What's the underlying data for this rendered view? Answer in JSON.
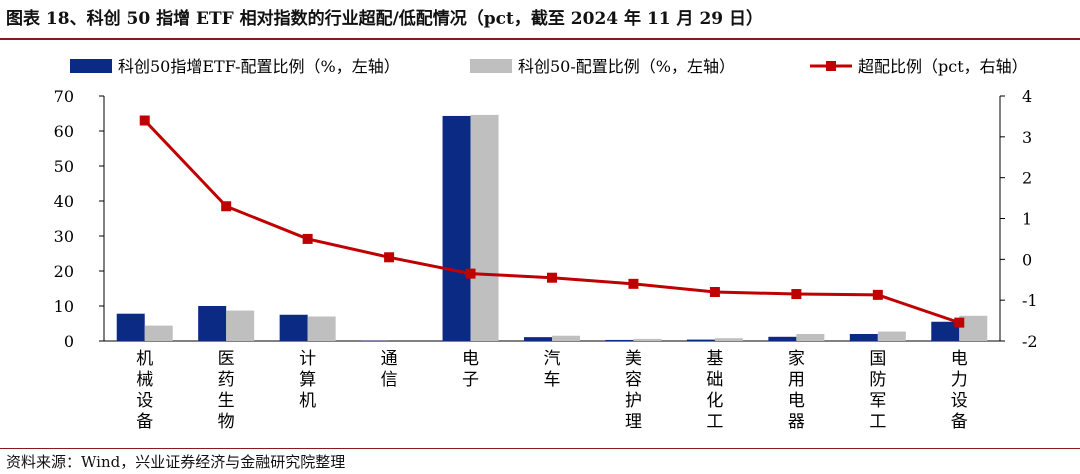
{
  "title": "图表 18、科创 50 指增 ETF 相对指数的行业超配/低配情况（pct，截至 2024 年 11 月 29 日）",
  "source": "资料来源：Wind，兴业证券经济与金融研究院整理",
  "chart_data": {
    "type": "bar",
    "categories": [
      [
        "机",
        "械",
        "设",
        "备"
      ],
      [
        "医",
        "药",
        "生",
        "物"
      ],
      [
        "计",
        "算",
        "机"
      ],
      [
        "通",
        "信"
      ],
      [
        "电",
        "子"
      ],
      [
        "汽",
        "车"
      ],
      [
        "美",
        "容",
        "护",
        "理"
      ],
      [
        "基",
        "础",
        "化",
        "工"
      ],
      [
        "家",
        "用",
        "电",
        "器"
      ],
      [
        "国",
        "防",
        "军",
        "工"
      ],
      [
        "电",
        "力",
        "设",
        "备"
      ]
    ],
    "series": [
      {
        "name": "科创50指增ETF-配置比例（%，左轴）",
        "type": "bar",
        "axis": "left",
        "color": "#0b2a83",
        "values": [
          7.8,
          10.0,
          7.5,
          0.1,
          64.3,
          1.1,
          0.3,
          0.4,
          1.2,
          2.0,
          5.5
        ]
      },
      {
        "name": "科创50-配置比例（%，左轴）",
        "type": "bar",
        "axis": "left",
        "color": "#bfbfbf",
        "values": [
          4.4,
          8.7,
          7.0,
          0.0,
          64.6,
          1.5,
          0.6,
          0.8,
          2.0,
          2.7,
          7.2
        ]
      },
      {
        "name": "超配比例（pct，右轴）",
        "type": "line",
        "axis": "right",
        "color": "#c00000",
        "values": [
          3.4,
          1.3,
          0.5,
          0.05,
          -0.35,
          -0.45,
          -0.6,
          -0.8,
          -0.85,
          -0.87,
          -1.55
        ]
      }
    ],
    "y_left": {
      "min": 0,
      "max": 70,
      "ticks": [
        0,
        10,
        20,
        30,
        40,
        50,
        60,
        70
      ]
    },
    "y_right": {
      "min": -2,
      "max": 4,
      "ticks": [
        -2,
        -1,
        0,
        1,
        2,
        3,
        4
      ]
    },
    "legend_position": "top",
    "grid": false
  }
}
